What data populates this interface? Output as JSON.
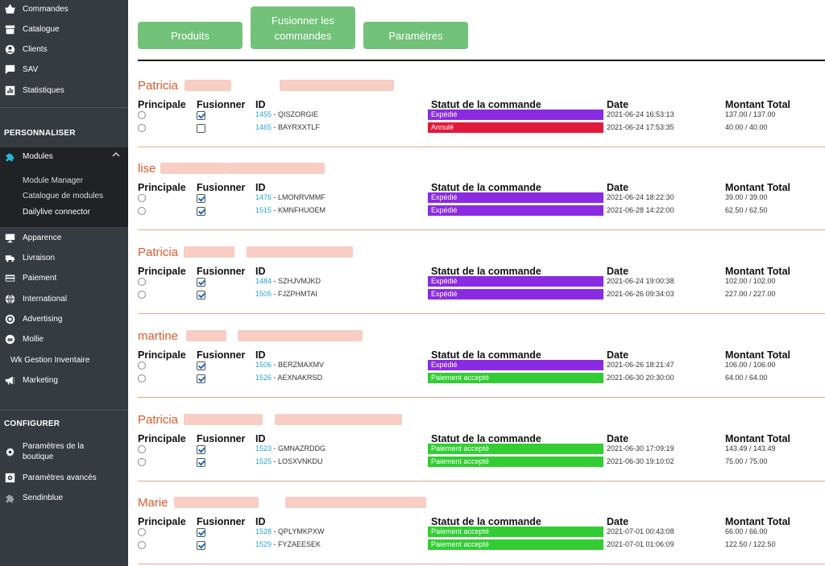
{
  "sidebar": {
    "items_top": [
      {
        "label": "Commandes",
        "icon": "basket-icon"
      },
      {
        "label": "Catalogue",
        "icon": "store-icon"
      },
      {
        "label": "Clients",
        "icon": "user-circle-icon"
      },
      {
        "label": "SAV",
        "icon": "chat-icon"
      },
      {
        "label": "Statistiques",
        "icon": "bar-chart-icon"
      }
    ],
    "section_personnaliser": "PERSONNALISER",
    "modules_label": "Modules",
    "modules_sub": [
      "Module Manager",
      "Catalogue de modules",
      "Dailylive connector"
    ],
    "items_mid": [
      {
        "label": "Apparence",
        "icon": "monitor-icon"
      },
      {
        "label": "Livraison",
        "icon": "truck-icon"
      },
      {
        "label": "Paiement",
        "icon": "credit-card-icon"
      },
      {
        "label": "International",
        "icon": "globe-icon"
      },
      {
        "label": "Advertising",
        "icon": "target-icon"
      },
      {
        "label": "Mollie",
        "icon": "mollie-icon"
      }
    ],
    "gestion_inventaire": "Wk Gestion Inventaire",
    "marketing": "Marketing",
    "section_configurer": "CONFIGURER",
    "parametres_boutique": "Paramètres de la boutique",
    "parametres_avances": "Paramètres avancés",
    "sendinblue": "Sendinblue"
  },
  "toolbar": {
    "produits": "Produits",
    "fusionner": "Fusionner les commandes",
    "parametres": "Paramètres"
  },
  "headers": {
    "principale": "Principale",
    "fusionner": "Fusionner",
    "id": "ID",
    "statut": "Statut de la commande",
    "date": "Date",
    "montant": "Montant Total"
  },
  "status_colors": {
    "Expédié": "#8a2be2",
    "Annulé": "#e01a3c",
    "Paiement accepté": "#32cd32"
  },
  "customers": [
    {
      "name": "Patricia",
      "orders": [
        {
          "merge": true,
          "id": "1455",
          "ref": "QISZORGIE",
          "status": "Expédié",
          "date": "2021-06-24 16:53:13",
          "amount": "137.00 / 137.00"
        },
        {
          "merge": false,
          "id": "1465",
          "ref": "BAYRXXTLF",
          "status": "Annulé",
          "date": "2021-06-24 17:53:35",
          "amount": "40.00 / 40.00"
        }
      ]
    },
    {
      "name": "lise",
      "orders": [
        {
          "merge": true,
          "id": "1476",
          "ref": "LMONRVMMF",
          "status": "Expédié",
          "date": "2021-06-24 18:22:30",
          "amount": "39.00 / 39.00"
        },
        {
          "merge": true,
          "id": "1515",
          "ref": "KMNFHUOEM",
          "status": "Expédié",
          "date": "2021-06-28 14:22:00",
          "amount": "62.50 / 62.50"
        }
      ]
    },
    {
      "name": "Patricia",
      "orders": [
        {
          "merge": true,
          "id": "1484",
          "ref": "SZHJVMJKD",
          "status": "Expédié",
          "date": "2021-06-24 19:00:38",
          "amount": "102.00 / 102.00"
        },
        {
          "merge": true,
          "id": "1505",
          "ref": "FJZPHMTAI",
          "status": "Expédié",
          "date": "2021-06-26 09:34:03",
          "amount": "227.00 / 227.00"
        }
      ]
    },
    {
      "name": "martine",
      "orders": [
        {
          "merge": true,
          "id": "1506",
          "ref": "BERZMAXMV",
          "status": "Expédié",
          "date": "2021-06-26 18:21:47",
          "amount": "106.00 / 106.00"
        },
        {
          "merge": true,
          "id": "1526",
          "ref": "AEXNAKRSD",
          "status": "Paiement accepté",
          "date": "2021-06-30 20:30:00",
          "amount": "64.00 / 64.00"
        }
      ]
    },
    {
      "name": "Patricia",
      "orders": [
        {
          "merge": true,
          "id": "1523",
          "ref": "GMNAZRDDG",
          "status": "Paiement accepté",
          "date": "2021-06-30 17:09:19",
          "amount": "143.49 / 143.49"
        },
        {
          "merge": true,
          "id": "1525",
          "ref": "LOSXVNKDU",
          "status": "Paiement accepté",
          "date": "2021-06-30 19:10:02",
          "amount": "75.00 / 75.00"
        }
      ]
    },
    {
      "name": "Marie",
      "orders": [
        {
          "merge": true,
          "id": "1528",
          "ref": "QPLYMKPXW",
          "status": "Paiement accepté",
          "date": "2021-07-01 00:43:08",
          "amount": "66.00 / 66.00"
        },
        {
          "merge": true,
          "id": "1529",
          "ref": "FYZAEESEK",
          "status": "Paiement accepté",
          "date": "2021-07-01 01:06:09",
          "amount": "122.50 / 122.50"
        }
      ]
    }
  ]
}
